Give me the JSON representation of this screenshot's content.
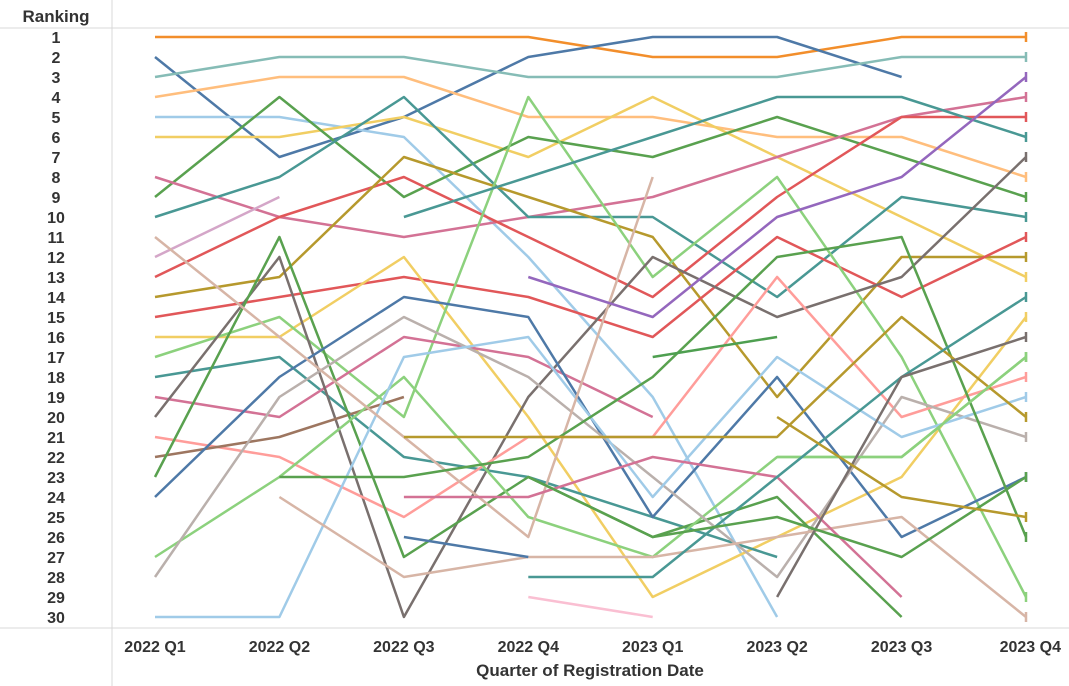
{
  "chart_data": {
    "type": "line",
    "title": "",
    "ylabel": "Ranking",
    "xlabel": "Quarter of Registration Date",
    "categories": [
      "2022 Q1",
      "2022 Q2",
      "2022 Q3",
      "2022 Q4",
      "2023 Q1",
      "2023 Q2",
      "2023 Q3",
      "2023 Q4"
    ],
    "y_ticks": [
      "1",
      "2",
      "3",
      "4",
      "5",
      "6",
      "7",
      "8",
      "9",
      "10",
      "11",
      "12",
      "13",
      "14",
      "15",
      "16",
      "17",
      "18",
      "19",
      "20",
      "21",
      "22",
      "23",
      "24",
      "25",
      "26",
      "27",
      "28",
      "29",
      "30"
    ],
    "ylim": [
      1,
      30
    ],
    "y_reversed": true,
    "grid": "off",
    "legend": "none",
    "series": [
      {
        "color": "#f28e2b",
        "values": [
          1,
          1,
          1,
          1,
          2,
          2,
          1,
          1
        ]
      },
      {
        "color": "#4e79a7",
        "values": [
          2,
          7,
          5,
          2,
          1,
          1,
          3,
          null
        ]
      },
      {
        "color": "#86bcb6",
        "values": [
          3,
          2,
          2,
          3,
          3,
          3,
          2,
          2
        ]
      },
      {
        "color": "#ffbe7d",
        "values": [
          4,
          3,
          3,
          5,
          5,
          6,
          6,
          8
        ]
      },
      {
        "color": "#a0cbe8",
        "values": [
          5,
          5,
          6,
          12,
          19,
          30,
          null,
          null
        ]
      },
      {
        "color": "#f1ce63",
        "values": [
          6,
          6,
          5,
          7,
          4,
          7,
          10,
          13
        ]
      },
      {
        "color": "#59a14f",
        "values": [
          9,
          4,
          9,
          6,
          7,
          5,
          7,
          9
        ]
      },
      {
        "color": "#d37295",
        "values": [
          8,
          10,
          11,
          10,
          9,
          7,
          5,
          4
        ]
      },
      {
        "color": "#499894",
        "values": [
          10,
          8,
          4,
          10,
          10,
          14,
          9,
          10
        ]
      },
      {
        "color": "#e15759",
        "values": [
          13,
          10,
          8,
          11,
          14,
          9,
          5,
          5
        ]
      },
      {
        "color": "#b6992d",
        "values": [
          14,
          13,
          7,
          9,
          11,
          19,
          12,
          12
        ]
      },
      {
        "color": "#e15759",
        "values": [
          15,
          14,
          13,
          14,
          16,
          11,
          14,
          11
        ]
      },
      {
        "color": "#f1ce63",
        "values": [
          16,
          16,
          12,
          20,
          29,
          26,
          23,
          15
        ]
      },
      {
        "color": "#8cd17d",
        "values": [
          17,
          15,
          20,
          4,
          13,
          8,
          17,
          29
        ]
      },
      {
        "color": "#499894",
        "values": [
          18,
          17,
          22,
          23,
          25,
          27,
          null,
          null
        ]
      },
      {
        "color": "#d37295",
        "values": [
          19,
          20,
          16,
          17,
          20,
          null,
          null,
          null
        ]
      },
      {
        "color": "#79706e",
        "values": [
          20,
          12,
          30,
          19,
          12,
          15,
          13,
          7
        ]
      },
      {
        "color": "#ff9d9a",
        "values": [
          21,
          22,
          25,
          21,
          21,
          13,
          20,
          18
        ]
      },
      {
        "color": "#9d7660",
        "values": [
          22,
          21,
          19,
          null,
          null,
          null,
          null,
          null
        ]
      },
      {
        "color": "#59a14f",
        "values": [
          23,
          11,
          27,
          23,
          26,
          24,
          30,
          null
        ]
      },
      {
        "color": "#4e79a7",
        "values": [
          24,
          18,
          14,
          15,
          25,
          18,
          26,
          23
        ]
      },
      {
        "color": "#8cd17d",
        "values": [
          27,
          23,
          18,
          25,
          27,
          22,
          22,
          17
        ]
      },
      {
        "color": "#bab0ac",
        "values": [
          28,
          19,
          15,
          18,
          23,
          28,
          19,
          21
        ]
      },
      {
        "color": "#fabfd2",
        "values": [
          26,
          null,
          null,
          29,
          30,
          null,
          null,
          null
        ]
      },
      {
        "color": "#a0cbe8",
        "values": [
          30,
          30,
          17,
          16,
          24,
          17,
          21,
          19
        ]
      },
      {
        "color": "#d4a6c8",
        "values": [
          12,
          9,
          null,
          null,
          null,
          null,
          null,
          null
        ]
      },
      {
        "color": "#d7b5a6",
        "values": [
          11,
          16,
          21,
          26,
          8,
          null,
          null,
          null
        ]
      },
      {
        "color": "#d7b5a6",
        "values": [
          null,
          24,
          28,
          27,
          27,
          26,
          25,
          30
        ]
      },
      {
        "color": "#499894",
        "values": [
          null,
          null,
          10,
          8,
          6,
          4,
          4,
          6
        ]
      },
      {
        "color": "#59a14f",
        "values": [
          null,
          23,
          23,
          22,
          18,
          12,
          11,
          26
        ]
      },
      {
        "color": "#b6992d",
        "values": [
          null,
          null,
          21,
          21,
          21,
          21,
          15,
          20
        ]
      },
      {
        "color": "#d37295",
        "values": [
          null,
          null,
          24,
          24,
          22,
          23,
          29,
          null
        ]
      },
      {
        "color": "#4e79a7",
        "values": [
          null,
          null,
          26,
          27,
          null,
          null,
          null,
          null
        ]
      },
      {
        "color": "#8cd17d",
        "values": [
          null,
          null,
          null,
          null,
          null,
          22,
          22,
          17
        ]
      },
      {
        "color": "#499894",
        "values": [
          null,
          null,
          null,
          28,
          28,
          23,
          18,
          14
        ]
      },
      {
        "color": "#9467bd",
        "values": [
          null,
          null,
          null,
          13,
          15,
          10,
          8,
          3
        ]
      },
      {
        "color": "#4e9f50",
        "values": [
          null,
          null,
          null,
          null,
          17,
          16,
          null,
          null
        ]
      },
      {
        "color": "#79706e",
        "values": [
          null,
          null,
          null,
          null,
          null,
          29,
          18,
          16
        ]
      },
      {
        "color": "#59a14f",
        "values": [
          null,
          null,
          null,
          23,
          26,
          25,
          27,
          23
        ]
      },
      {
        "color": "#b6992d",
        "values": [
          null,
          null,
          null,
          null,
          null,
          20,
          24,
          25
        ]
      }
    ]
  }
}
